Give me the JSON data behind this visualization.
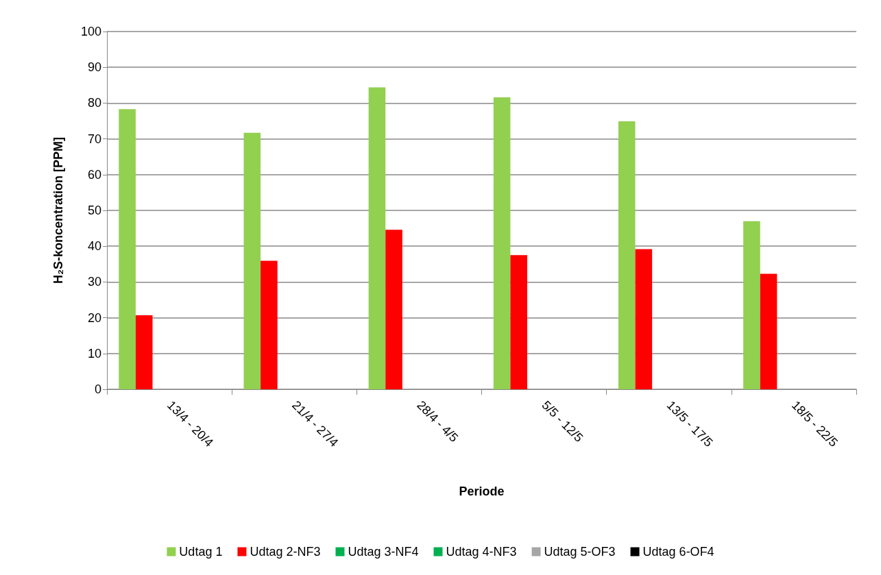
{
  "chart_data": {
    "type": "bar",
    "xlabel": "Periode",
    "ylabel": "H₂S-koncentration [PPM]",
    "categories": [
      "13/4 - 20/4",
      "21/4 - 27/4",
      "28/4 - 4/5",
      "5/5 - 12/5",
      "13/5 - 17/5",
      "18/5 - 22/5"
    ],
    "series": [
      {
        "name": "Udtag 1",
        "color": "#92d050",
        "values": [
          78.3,
          71.7,
          84.4,
          81.6,
          74.9,
          47.0
        ]
      },
      {
        "name": "Udtag 2-NF3",
        "color": "#ff0000",
        "values": [
          20.7,
          35.9,
          44.6,
          37.5,
          39.2,
          32.3
        ]
      },
      {
        "name": "Udtag 3-NF4",
        "color": "#00b050",
        "values": [
          null,
          null,
          null,
          null,
          null,
          null
        ]
      },
      {
        "name": "Udtag 4-NF3",
        "color": "#00b050",
        "values": [
          null,
          null,
          null,
          null,
          null,
          null
        ]
      },
      {
        "name": "Udtag 5-OF3",
        "color": "#a6a6a6",
        "values": [
          null,
          null,
          null,
          null,
          null,
          null
        ]
      },
      {
        "name": "Udtag 6-OF4",
        "color": "#000000",
        "values": [
          null,
          null,
          null,
          null,
          null,
          null
        ]
      }
    ],
    "ylim": [
      0,
      100
    ],
    "yticks": [
      0,
      10,
      20,
      30,
      40,
      50,
      60,
      70,
      80,
      90,
      100
    ],
    "grid": "y",
    "legend": "bottom"
  }
}
